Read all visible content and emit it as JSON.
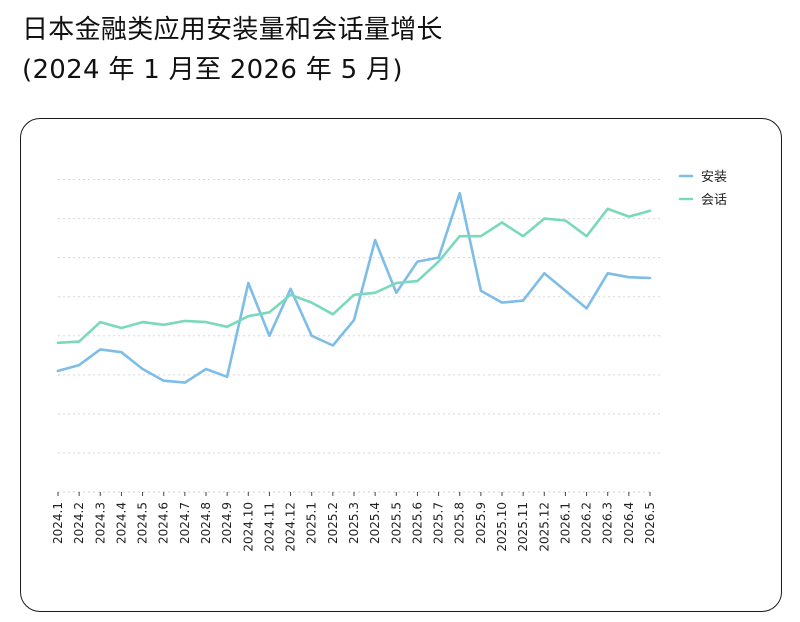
{
  "header": {
    "title_line1": "日本金融类应用安装量和会话量增长",
    "title_line2": "(2024 年 1 月至 2026 年 5 月)"
  },
  "chart_data": {
    "type": "line",
    "title": "日本金融类应用安装量和会话量增长 (2024 年 1 月至 2026 年 5 月)",
    "categories": [
      "2024.1",
      "2024.2",
      "2024.3",
      "2024.4",
      "2024.5",
      "2024.6",
      "2024.7",
      "2024.8",
      "2024.9",
      "2024.10",
      "2024.11",
      "2024.12",
      "2025.1",
      "2025.2",
      "2025.3",
      "2025.4",
      "2025.5",
      "2025.6",
      "2025.7",
      "2025.8",
      "2025.9",
      "2025.10",
      "2025.11",
      "2025.12",
      "2026.1",
      "2026.2",
      "2026.3",
      "2026.4",
      "2026.5"
    ],
    "series": [
      {
        "name": "安装",
        "color": "#7dbde8",
        "values": [
          31,
          32.5,
          36.5,
          35.8,
          31.5,
          28.5,
          28,
          31.5,
          29.5,
          53.5,
          40,
          52,
          40,
          37.5,
          44,
          64.5,
          51,
          59,
          60,
          76.5,
          51.5,
          48.5,
          49,
          56,
          51.5,
          47,
          56,
          55,
          54.8
        ]
      },
      {
        "name": "会话",
        "color": "#7ad9bb",
        "values": [
          38.2,
          38.5,
          43.5,
          42,
          43.5,
          42.8,
          43.8,
          43.5,
          42.3,
          45,
          46,
          50.5,
          48.5,
          45.5,
          50.5,
          51,
          53.5,
          54,
          59,
          65.5,
          65.5,
          69,
          65.5,
          70,
          69.5,
          65.5,
          72.5,
          70.5,
          72
        ]
      }
    ],
    "ylim": [
      0,
      85
    ],
    "grid": true,
    "legend": "top-right"
  }
}
